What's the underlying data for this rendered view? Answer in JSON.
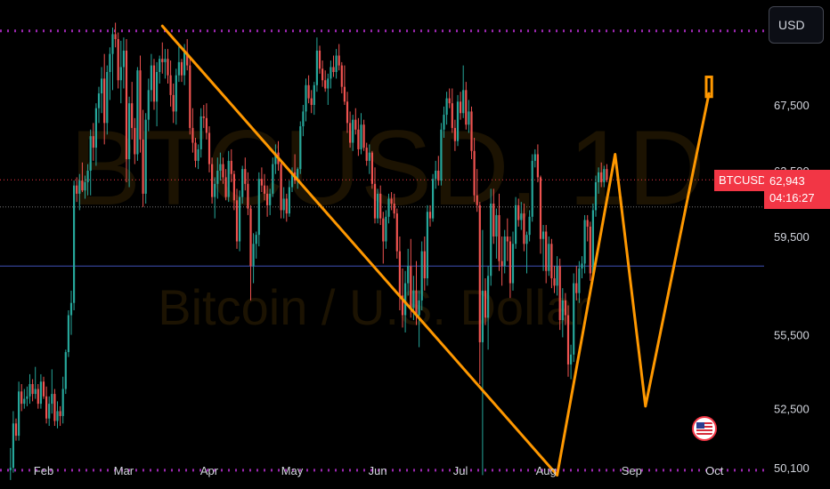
{
  "header": {
    "currency_button": "USD"
  },
  "watermark": {
    "symbol_line": "BTCUSD, 1D",
    "name_line": "Bitcoin / U.S. Dollar"
  },
  "price_label": {
    "symbol": "BTCUSD",
    "price": "62,943",
    "countdown": "04:16:27"
  },
  "y_axis": {
    "labels": [
      "67,500",
      "63,500",
      "59,500",
      "55,500",
      "52,500",
      "50,100"
    ]
  },
  "x_axis": {
    "labels": [
      "Feb",
      "Mar",
      "Apr",
      "May",
      "Jun",
      "Jul",
      "Aug",
      "Sep",
      "Oct"
    ]
  },
  "colors": {
    "up": "#26a69a",
    "down": "#ef5350",
    "drawing": "#ff9800",
    "purple_line": "#9c27b0",
    "blue_line": "#3f51b5",
    "price": "#f23645"
  },
  "chart_data": {
    "type": "candlestick",
    "symbol": "BTCUSD",
    "timeframe": "1D",
    "ylim": [
      48700,
      72500
    ],
    "y_ticks": [
      67500,
      63500,
      59500,
      55500,
      52500,
      50100
    ],
    "last_price": 62943,
    "candles": [
      [
        50000,
        50900,
        49600,
        50100
      ],
      [
        50100,
        52400,
        49900,
        51900
      ],
      [
        51900,
        52100,
        51200,
        51400
      ],
      [
        51400,
        53600,
        51200,
        53200
      ],
      [
        53200,
        53500,
        52400,
        52700
      ],
      [
        52700,
        53300,
        52500,
        52900
      ],
      [
        52900,
        53400,
        52600,
        53000
      ],
      [
        53000,
        53900,
        52700,
        53500
      ],
      [
        53500,
        53700,
        52800,
        53100
      ],
      [
        53100,
        54200,
        52900,
        53300
      ],
      [
        53300,
        53500,
        52500,
        52700
      ],
      [
        52700,
        53900,
        52500,
        53600
      ],
      [
        53600,
        53800,
        52900,
        53000
      ],
      [
        53000,
        53400,
        51900,
        52100
      ],
      [
        52100,
        53000,
        51800,
        52700
      ],
      [
        52700,
        54100,
        52300,
        53100
      ],
      [
        53100,
        53300,
        51800,
        52000
      ],
      [
        52000,
        52800,
        51700,
        52400
      ],
      [
        52400,
        52600,
        51800,
        52200
      ],
      [
        52200,
        53800,
        51900,
        53300
      ],
      [
        53300,
        54900,
        53100,
        54800
      ],
      [
        54800,
        56500,
        54600,
        56300
      ],
      [
        56300,
        57300,
        55500,
        56800
      ],
      [
        56800,
        62900,
        56500,
        62600
      ],
      [
        62600,
        63100,
        61600,
        62100
      ],
      [
        62100,
        63300,
        61100,
        62900
      ],
      [
        62900,
        64000,
        62200,
        62300
      ],
      [
        62300,
        63200,
        61800,
        62800
      ],
      [
        62800,
        63900,
        62000,
        63500
      ],
      [
        63500,
        66000,
        62000,
        65600
      ],
      [
        65600,
        66400,
        64100,
        64900
      ],
      [
        64900,
        67600,
        63800,
        67300
      ],
      [
        67300,
        68600,
        66400,
        68200
      ],
      [
        68200,
        69800,
        67000,
        69100
      ],
      [
        69100,
        70600,
        65100,
        66400
      ],
      [
        66400,
        69900,
        65700,
        69500
      ],
      [
        69500,
        71000,
        67800,
        70600
      ],
      [
        70600,
        72200,
        68400,
        71800
      ],
      [
        71800,
        72500,
        71000,
        71500
      ],
      [
        71500,
        71900,
        68500,
        69000
      ],
      [
        69000,
        71400,
        67600,
        69800
      ],
      [
        69800,
        71600,
        68500,
        70800
      ],
      [
        70800,
        71500,
        62800,
        64200
      ],
      [
        64200,
        68000,
        62500,
        67600
      ],
      [
        67600,
        68900,
        65400,
        66100
      ],
      [
        66100,
        66700,
        63900,
        64500
      ],
      [
        64500,
        69800,
        64100,
        69600
      ],
      [
        69600,
        70500,
        64600,
        65400
      ],
      [
        65400,
        67200,
        61300,
        62100
      ],
      [
        62100,
        67000,
        61500,
        66600
      ],
      [
        66600,
        69100,
        65900,
        68400
      ],
      [
        68400,
        70600,
        67700,
        69900
      ],
      [
        69900,
        70300,
        67200,
        67700
      ],
      [
        67700,
        70100,
        66200,
        69500
      ],
      [
        69500,
        70500,
        68800,
        70300
      ],
      [
        70300,
        71300,
        69400,
        70100
      ],
      [
        70100,
        70900,
        69100,
        70300
      ],
      [
        70300,
        70900,
        68800,
        69300
      ],
      [
        69300,
        70200,
        67400,
        68100
      ],
      [
        68100,
        68800,
        66400,
        67100
      ],
      [
        67100,
        69700,
        66300,
        69300
      ],
      [
        69300,
        71100,
        68900,
        70100
      ],
      [
        70100,
        70300,
        68900,
        69300
      ],
      [
        69300,
        71200,
        68700,
        70700
      ],
      [
        70700,
        71500,
        69600,
        69900
      ],
      [
        69900,
        70300,
        65700,
        66100
      ],
      [
        66100,
        67300,
        64600,
        65200
      ],
      [
        65200,
        65500,
        63700,
        64100
      ],
      [
        64100,
        65100,
        63600,
        64800
      ],
      [
        64800,
        67300,
        64300,
        66800
      ],
      [
        66800,
        67500,
        66100,
        66700
      ],
      [
        66700,
        67600,
        65400,
        65800
      ],
      [
        65800,
        66200,
        63400,
        63900
      ],
      [
        63900,
        64300,
        61500,
        61900
      ],
      [
        61900,
        63100,
        60600,
        62700
      ],
      [
        62700,
        64300,
        61800,
        63500
      ],
      [
        63500,
        64600,
        62900,
        63900
      ],
      [
        63900,
        64300,
        62700,
        63100
      ],
      [
        63100,
        63600,
        61700,
        61900
      ],
      [
        61900,
        64700,
        61600,
        64100
      ],
      [
        64100,
        64800,
        62800,
        63300
      ],
      [
        63300,
        63500,
        61100,
        61700
      ],
      [
        61700,
        62400,
        59000,
        59300
      ],
      [
        59300,
        62300,
        58900,
        61900
      ],
      [
        61900,
        63800,
        61500,
        63600
      ],
      [
        63600,
        64300,
        62300,
        62700
      ],
      [
        62700,
        63400,
        60800,
        61200
      ],
      [
        61200,
        61400,
        56900,
        58300
      ],
      [
        58300,
        59700,
        57600,
        59200
      ],
      [
        59200,
        59800,
        58600,
        59600
      ],
      [
        59600,
        63400,
        59100,
        63000
      ],
      [
        63000,
        63700,
        62200,
        62600
      ],
      [
        62600,
        63300,
        61700,
        62100
      ],
      [
        62100,
        62600,
        60700,
        61400
      ],
      [
        61400,
        62400,
        60800,
        62100
      ],
      [
        62100,
        64300,
        61900,
        63900
      ],
      [
        63900,
        65100,
        63300,
        64600
      ],
      [
        64600,
        65300,
        63500,
        63900
      ],
      [
        63900,
        64100,
        60600,
        61100
      ],
      [
        61100,
        62500,
        60600,
        61800
      ],
      [
        61800,
        62100,
        60400,
        60900
      ],
      [
        60900,
        62900,
        60700,
        62500
      ],
      [
        62500,
        63700,
        62200,
        63400
      ],
      [
        63400,
        64500,
        62700,
        62900
      ],
      [
        62900,
        63700,
        62400,
        63600
      ],
      [
        63600,
        66500,
        63300,
        66200
      ],
      [
        66200,
        67500,
        65600,
        67100
      ],
      [
        67100,
        69100,
        66500,
        68700
      ],
      [
        68700,
        69300,
        67600,
        67900
      ],
      [
        67900,
        68400,
        67000,
        67500
      ],
      [
        67500,
        68900,
        66900,
        68700
      ],
      [
        68700,
        71600,
        68300,
        70800
      ],
      [
        70800,
        71100,
        69400,
        69700
      ],
      [
        69700,
        70200,
        68600,
        69000
      ],
      [
        69000,
        69600,
        68300,
        68500
      ],
      [
        68500,
        69400,
        67500,
        69100
      ],
      [
        69100,
        70200,
        68500,
        69800
      ],
      [
        69800,
        70500,
        69200,
        69500
      ],
      [
        69500,
        70900,
        69100,
        70500
      ],
      [
        70500,
        71200,
        69600,
        69900
      ],
      [
        69900,
        70100,
        68200,
        68600
      ],
      [
        68600,
        69900,
        67500,
        67700
      ],
      [
        67700,
        68300,
        65800,
        66400
      ],
      [
        66400,
        67100,
        64900,
        65200
      ],
      [
        65200,
        66900,
        64700,
        66600
      ],
      [
        66600,
        67300,
        65700,
        66000
      ],
      [
        66000,
        66700,
        64400,
        64800
      ],
      [
        64800,
        67000,
        64500,
        66300
      ],
      [
        66300,
        66600,
        64700,
        64900
      ],
      [
        64900,
        65200,
        63800,
        64100
      ],
      [
        64100,
        65100,
        63300,
        64600
      ],
      [
        64600,
        64700,
        62400,
        62700
      ],
      [
        62700,
        63700,
        60300,
        60600
      ],
      [
        60600,
        62400,
        60300,
        62100
      ],
      [
        62100,
        62600,
        60200,
        60600
      ],
      [
        60600,
        61000,
        58400,
        59300
      ],
      [
        59300,
        61100,
        59000,
        60700
      ],
      [
        60700,
        62100,
        60300,
        61800
      ],
      [
        61800,
        62200,
        61100,
        61500
      ],
      [
        61500,
        62100,
        60600,
        60900
      ],
      [
        60900,
        61200,
        58600,
        58900
      ],
      [
        58900,
        59500,
        56500,
        57100
      ],
      [
        57100,
        58200,
        55800,
        56300
      ],
      [
        56300,
        58100,
        55600,
        57600
      ],
      [
        57600,
        59000,
        57100,
        58300
      ],
      [
        58300,
        59400,
        56200,
        56600
      ],
      [
        56600,
        57900,
        56100,
        57300
      ],
      [
        57300,
        58500,
        55900,
        56300
      ],
      [
        56300,
        57300,
        55000,
        56900
      ],
      [
        56900,
        59300,
        56500,
        58900
      ],
      [
        58900,
        59500,
        57300,
        57800
      ],
      [
        57800,
        61400,
        57500,
        61000
      ],
      [
        61000,
        61400,
        60100,
        60600
      ],
      [
        60600,
        63300,
        60400,
        63000
      ],
      [
        63000,
        64100,
        62400,
        63500
      ],
      [
        63500,
        64400,
        62600,
        62900
      ],
      [
        62900,
        66400,
        62600,
        66000
      ],
      [
        66000,
        67400,
        65500,
        66900
      ],
      [
        66900,
        68300,
        66300,
        67900
      ],
      [
        67900,
        68500,
        67300,
        67600
      ],
      [
        67600,
        68500,
        65800,
        66100
      ],
      [
        66100,
        66600,
        64700,
        65300
      ],
      [
        65300,
        68100,
        65000,
        67700
      ],
      [
        67700,
        68300,
        66600,
        67000
      ],
      [
        67000,
        69900,
        66700,
        68400
      ],
      [
        68400,
        68900,
        66000,
        66300
      ],
      [
        66300,
        67800,
        65800,
        67100
      ],
      [
        67100,
        67400,
        64200,
        64700
      ],
      [
        64700,
        65500,
        61600,
        62000
      ],
      [
        62000,
        63600,
        61000,
        61400
      ],
      [
        61400,
        61600,
        53500,
        55200
      ],
      [
        55200,
        59900,
        49800,
        57300
      ],
      [
        57300,
        57800,
        55900,
        56200
      ],
      [
        56200,
        58300,
        54900,
        57900
      ],
      [
        57900,
        62400,
        57500,
        61500
      ],
      [
        61500,
        62400,
        59200,
        59500
      ],
      [
        59500,
        61200,
        58600,
        60800
      ],
      [
        60800,
        62100,
        58100,
        58500
      ],
      [
        58500,
        59500,
        57500,
        58300
      ],
      [
        58300,
        59900,
        58000,
        59500
      ],
      [
        59500,
        60600,
        58500,
        59300
      ],
      [
        59300,
        59500,
        57000,
        57600
      ],
      [
        57600,
        59800,
        57300,
        59200
      ],
      [
        59200,
        61900,
        59000,
        61400
      ],
      [
        61400,
        61800,
        60100,
        60500
      ],
      [
        60500,
        61600,
        59900,
        60900
      ],
      [
        60900,
        61500,
        58900,
        59200
      ],
      [
        59200,
        59800,
        58000,
        59600
      ],
      [
        59600,
        61100,
        59300,
        60700
      ],
      [
        60700,
        64500,
        60400,
        64100
      ],
      [
        64100,
        64800,
        63700,
        64500
      ],
      [
        64500,
        65100,
        62800,
        63100
      ],
      [
        63100,
        63200,
        58800,
        59400
      ],
      [
        59400,
        60200,
        58100,
        59800
      ],
      [
        59800,
        60200,
        57600,
        58100
      ],
      [
        58100,
        59500,
        57900,
        59200
      ],
      [
        59200,
        59400,
        57400,
        57800
      ],
      [
        57800,
        58300,
        57200,
        57500
      ],
      [
        57500,
        58700,
        57100,
        58300
      ],
      [
        58300,
        58600,
        55700,
        56100
      ],
      [
        56100,
        57400,
        55400,
        56900
      ],
      [
        56900,
        57200,
        55900,
        56300
      ],
      [
        56300,
        56700,
        53800,
        54300
      ],
      [
        54300,
        55100,
        53700,
        54700
      ],
      [
        54700,
        58000,
        54400,
        57600
      ],
      [
        57600,
        58300,
        56900,
        57200
      ],
      [
        57200,
        58500,
        56800,
        58200
      ],
      [
        58200,
        58700,
        57800,
        58400
      ],
      [
        58400,
        60800,
        58000,
        60500
      ],
      [
        60500,
        60800,
        59300,
        60100
      ],
      [
        60100,
        60400,
        57700,
        58000
      ],
      [
        58000,
        61500,
        57800,
        61100
      ],
      [
        61100,
        63200,
        60700,
        62800
      ],
      [
        62800,
        63700,
        62100,
        63400
      ],
      [
        63400,
        64000,
        62500,
        62800
      ],
      [
        62800,
        63800,
        62500,
        63600
      ],
      [
        63600,
        63900,
        62800,
        62943
      ]
    ],
    "drawings": [
      {
        "type": "trend_line",
        "points": [
          [
            "2024-03-15",
            72300
          ],
          [
            "2024-08-05",
            49800
          ]
        ]
      },
      {
        "type": "polyline",
        "points": [
          [
            "2024-08-05",
            49800
          ],
          [
            "2024-08-26",
            64500
          ],
          [
            "2024-09-06",
            52600
          ],
          [
            "2024-09-29",
            68200
          ]
        ]
      },
      {
        "type": "rectangle",
        "from": [
          "2024-09-28",
          69200
        ],
        "to": [
          "2024-09-30",
          68000
        ]
      }
    ],
    "horizontal_lines": [
      {
        "price": 72000,
        "style": "dotted",
        "color": "purple"
      },
      {
        "price": 50000,
        "style": "dotted",
        "color": "purple"
      },
      {
        "price": 58300,
        "style": "solid",
        "color": "blue"
      },
      {
        "price": 61300,
        "style": "dotted",
        "color": "gray"
      }
    ]
  }
}
